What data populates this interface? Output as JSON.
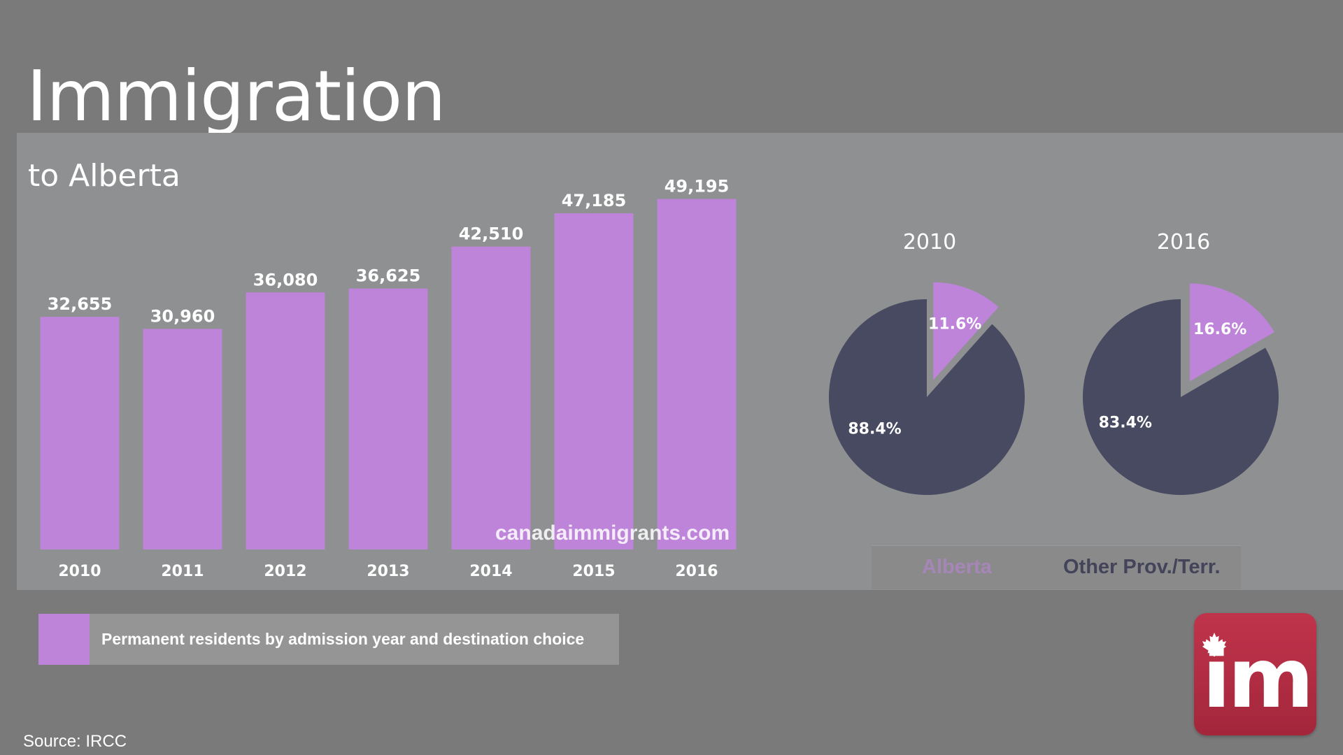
{
  "title": "Immigration",
  "subtitle": "to  Alberta",
  "watermark": "canadaimmigrants.com",
  "legend_text": "Permanent residents by admission year and destination choice",
  "source": "Source: IRCC",
  "logo_text": "im",
  "colors": {
    "bar": "#bd84da",
    "alberta": "#bd84da",
    "other": "#474a60",
    "background": "#7a7a7a",
    "panel": "#8f9091"
  },
  "pie_legend": {
    "alberta": "Alberta",
    "other": "Other Prov./Terr."
  },
  "chart_data": [
    {
      "type": "bar",
      "categories": [
        "2010",
        "2011",
        "2012",
        "2013",
        "2014",
        "2015",
        "2016"
      ],
      "values": [
        32655,
        30960,
        36080,
        36625,
        42510,
        47185,
        49195
      ],
      "value_labels": [
        "32,655",
        "30,960",
        "36,080",
        "36,625",
        "42,510",
        "47,185",
        "49,195"
      ],
      "title": "",
      "xlabel": "",
      "ylabel": "",
      "ylim": [
        0,
        52000
      ],
      "grid": false
    },
    {
      "type": "pie",
      "title": "2010",
      "labels": [
        "Alberta",
        "Other Prov./Terr."
      ],
      "values": [
        11.6,
        88.4
      ],
      "value_labels": [
        "11.6%",
        "88.4%"
      ],
      "exploded": "Alberta"
    },
    {
      "type": "pie",
      "title": "2016",
      "labels": [
        "Alberta",
        "Other Prov./Terr."
      ],
      "values": [
        16.6,
        83.4
      ],
      "value_labels": [
        "16.6%",
        "83.4%"
      ],
      "exploded": "Alberta"
    }
  ]
}
